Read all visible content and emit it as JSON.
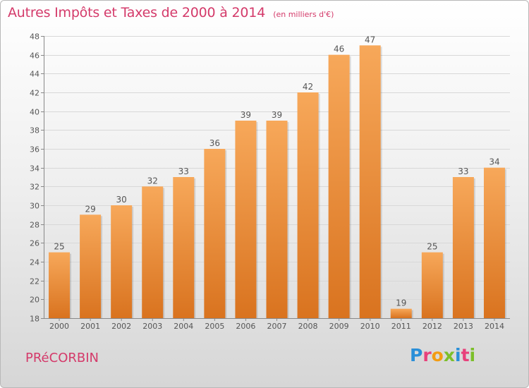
{
  "title": "Autres Impôts et Taxes de 2000 à 2014",
  "subtitle": "(en milliers d'€)",
  "place": "PRéCORBIN",
  "logo": {
    "text": "Proxiti",
    "colors": [
      "#2a8fd8",
      "#e8417b",
      "#f39c12",
      "#7cbf2a",
      "#2a8fd8",
      "#e8417b",
      "#7cbf2a"
    ]
  },
  "colors": {
    "bar_light": "#f7a85a",
    "bar_dark": "#d9731f",
    "grid": "#d8d8d8",
    "text": "#555555"
  },
  "chart_data": {
    "type": "bar",
    "title": "Autres Impôts et Taxes de 2000 à 2014",
    "subtitle": "(en milliers d'€)",
    "categories": [
      "2000",
      "2001",
      "2002",
      "2003",
      "2004",
      "2005",
      "2006",
      "2007",
      "2008",
      "2009",
      "2010",
      "2011",
      "2012",
      "2013",
      "2014"
    ],
    "values": [
      25,
      29,
      30,
      32,
      33,
      36,
      39,
      39,
      42,
      46,
      47,
      19,
      25,
      33,
      34
    ],
    "ylim": [
      18,
      48
    ],
    "yticks": [
      18,
      20,
      22,
      24,
      26,
      28,
      30,
      32,
      34,
      36,
      38,
      40,
      42,
      44,
      46,
      48
    ],
    "grid": true,
    "data_labels": true
  }
}
